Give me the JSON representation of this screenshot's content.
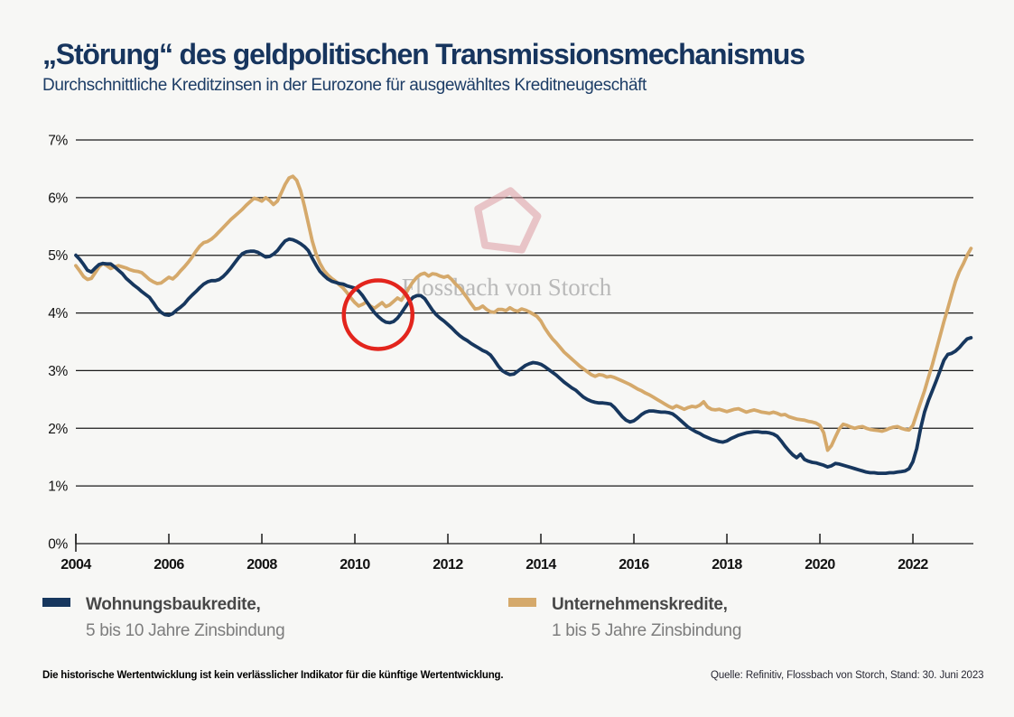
{
  "header": {
    "title": "„Störung“ des geldpolitischen Transmissionsmechanismus",
    "subtitle": "Durchschnittliche Kreditzinsen in der Eurozone für ausgewähltes Kreditneugeschäft"
  },
  "legend": {
    "entries": [
      {
        "line1": "Wohnungsbaukredite,",
        "line2": "5 bis 10 Jahre Zinsbindung",
        "color": "#17375e"
      },
      {
        "line1": "Unternehmenskredite,",
        "line2": "1 bis 5 Jahre Zinsbindung",
        "color": "#d5a96b"
      }
    ]
  },
  "footer": {
    "disclaimer": "Die historische Wertentwicklung ist kein verlässlicher Indikator für die künftige Wertentwicklung.",
    "source": "Quelle: Refinitiv, Flossbach von Storch, Stand: 30. Juni 2023"
  },
  "colors": {
    "background": "#f7f7f5",
    "title_navy": "#17355e",
    "grid": "#1a1a1a",
    "line_housing": "#17375e",
    "line_corporate": "#d5a96b",
    "annotation_red": "#e3251d",
    "watermark_pink": "#dc9aa0",
    "watermark_gray": "#b3b3b3"
  },
  "chart_data": {
    "type": "line",
    "title": "„Störung“ des geldpolitischen Transmissionsmechanismus",
    "subtitle": "Durchschnittliche Kreditzinsen in der Eurozone für ausgewähltes Kreditneugeschäft",
    "xlabel": "",
    "ylabel": "",
    "xlim": [
      2004,
      2023.3
    ],
    "ylim": [
      0,
      7
    ],
    "grid": "horizontal",
    "legend_position": "bottom",
    "y_ticks": [
      "0%",
      "1%",
      "2%",
      "3%",
      "4%",
      "5%",
      "6%",
      "7%"
    ],
    "x_ticks": [
      2004,
      2006,
      2008,
      2010,
      2012,
      2014,
      2016,
      2018,
      2020,
      2022
    ],
    "watermark": {
      "text": "Flossbach von Storch",
      "symbol": "pentagon-logo"
    },
    "annotations": [
      {
        "type": "circle",
        "x": 2010.5,
        "y": 3.97,
        "note": "highlight of rate crossover around 2010/2011"
      }
    ],
    "series": [
      {
        "name": "Wohnungsbaukredite, 5 bis 10 Jahre Zinsbindung",
        "color": "#17375e",
        "x_start": 2004.0,
        "x_step": 0.083333,
        "values": [
          5.0,
          4.93,
          4.84,
          4.74,
          4.71,
          4.78,
          4.84,
          4.86,
          4.85,
          4.85,
          4.8,
          4.74,
          4.68,
          4.6,
          4.54,
          4.48,
          4.43,
          4.37,
          4.32,
          4.27,
          4.18,
          4.08,
          4.01,
          3.97,
          3.96,
          3.99,
          4.05,
          4.1,
          4.16,
          4.24,
          4.31,
          4.37,
          4.44,
          4.5,
          4.54,
          4.56,
          4.56,
          4.58,
          4.63,
          4.7,
          4.78,
          4.87,
          4.96,
          5.03,
          5.06,
          5.07,
          5.07,
          5.05,
          5.01,
          4.97,
          4.98,
          5.02,
          5.08,
          5.17,
          5.25,
          5.28,
          5.27,
          5.24,
          5.2,
          5.15,
          5.08,
          4.95,
          4.83,
          4.72,
          4.65,
          4.59,
          4.55,
          4.53,
          4.51,
          4.5,
          4.47,
          4.45,
          4.43,
          4.38,
          4.3,
          4.2,
          4.1,
          4.01,
          3.94,
          3.88,
          3.84,
          3.83,
          3.85,
          3.91,
          4.0,
          4.1,
          4.2,
          4.27,
          4.3,
          4.3,
          4.25,
          4.15,
          4.05,
          3.97,
          3.91,
          3.86,
          3.8,
          3.74,
          3.67,
          3.61,
          3.56,
          3.52,
          3.47,
          3.43,
          3.39,
          3.35,
          3.32,
          3.27,
          3.18,
          3.08,
          3.0,
          2.96,
          2.93,
          2.94,
          2.99,
          3.04,
          3.09,
          3.12,
          3.14,
          3.13,
          3.11,
          3.07,
          3.02,
          2.97,
          2.92,
          2.86,
          2.8,
          2.75,
          2.7,
          2.66,
          2.6,
          2.54,
          2.5,
          2.47,
          2.45,
          2.44,
          2.44,
          2.43,
          2.42,
          2.36,
          2.28,
          2.2,
          2.14,
          2.11,
          2.13,
          2.18,
          2.24,
          2.28,
          2.3,
          2.3,
          2.29,
          2.28,
          2.28,
          2.27,
          2.25,
          2.2,
          2.14,
          2.08,
          2.02,
          1.98,
          1.94,
          1.91,
          1.87,
          1.84,
          1.81,
          1.79,
          1.77,
          1.76,
          1.78,
          1.82,
          1.85,
          1.88,
          1.9,
          1.92,
          1.93,
          1.94,
          1.94,
          1.93,
          1.93,
          1.92,
          1.9,
          1.86,
          1.78,
          1.69,
          1.61,
          1.54,
          1.49,
          1.55,
          1.46,
          1.43,
          1.41,
          1.4,
          1.38,
          1.36,
          1.33,
          1.35,
          1.39,
          1.38,
          1.36,
          1.34,
          1.32,
          1.3,
          1.28,
          1.26,
          1.24,
          1.23,
          1.23,
          1.22,
          1.22,
          1.22,
          1.23,
          1.23,
          1.24,
          1.25,
          1.26,
          1.3,
          1.42,
          1.65,
          2.0,
          2.28,
          2.48,
          2.65,
          2.82,
          3.0,
          3.18,
          3.28,
          3.3,
          3.34,
          3.4,
          3.48,
          3.55,
          3.57
        ]
      },
      {
        "name": "Unternehmenskredite, 1 bis 5 Jahre Zinsbindung",
        "color": "#d5a96b",
        "x_start": 2004.0,
        "x_step": 0.083333,
        "values": [
          4.82,
          4.73,
          4.63,
          4.58,
          4.6,
          4.7,
          4.8,
          4.86,
          4.82,
          4.77,
          4.8,
          4.82,
          4.8,
          4.78,
          4.75,
          4.73,
          4.72,
          4.7,
          4.64,
          4.58,
          4.54,
          4.51,
          4.52,
          4.57,
          4.62,
          4.59,
          4.65,
          4.73,
          4.8,
          4.88,
          4.97,
          5.07,
          5.16,
          5.22,
          5.24,
          5.28,
          5.34,
          5.41,
          5.48,
          5.55,
          5.62,
          5.68,
          5.74,
          5.8,
          5.87,
          5.93,
          5.99,
          5.97,
          5.94,
          6.0,
          5.95,
          5.88,
          5.94,
          6.08,
          6.23,
          6.34,
          6.37,
          6.3,
          6.12,
          5.85,
          5.55,
          5.25,
          5.02,
          4.86,
          4.74,
          4.66,
          4.6,
          4.55,
          4.49,
          4.43,
          4.35,
          4.26,
          4.18,
          4.12,
          4.15,
          4.19,
          4.12,
          4.08,
          4.13,
          4.18,
          4.11,
          4.14,
          4.2,
          4.26,
          4.22,
          4.32,
          4.44,
          4.54,
          4.62,
          4.67,
          4.69,
          4.64,
          4.68,
          4.67,
          4.64,
          4.62,
          4.64,
          4.58,
          4.5,
          4.44,
          4.35,
          4.26,
          4.16,
          4.07,
          4.08,
          4.12,
          4.06,
          4.02,
          4.01,
          4.06,
          4.06,
          4.04,
          4.09,
          4.05,
          4.03,
          4.07,
          4.05,
          4.02,
          3.98,
          3.94,
          3.86,
          3.74,
          3.64,
          3.55,
          3.48,
          3.4,
          3.32,
          3.26,
          3.2,
          3.14,
          3.08,
          3.03,
          2.98,
          2.93,
          2.9,
          2.93,
          2.92,
          2.89,
          2.9,
          2.88,
          2.85,
          2.82,
          2.79,
          2.76,
          2.72,
          2.68,
          2.65,
          2.61,
          2.58,
          2.54,
          2.5,
          2.46,
          2.42,
          2.38,
          2.35,
          2.39,
          2.36,
          2.33,
          2.36,
          2.38,
          2.37,
          2.4,
          2.46,
          2.37,
          2.33,
          2.32,
          2.33,
          2.31,
          2.29,
          2.31,
          2.33,
          2.34,
          2.31,
          2.28,
          2.3,
          2.32,
          2.3,
          2.28,
          2.27,
          2.26,
          2.28,
          2.26,
          2.23,
          2.24,
          2.2,
          2.18,
          2.16,
          2.15,
          2.14,
          2.12,
          2.11,
          2.09,
          2.05,
          1.92,
          1.62,
          1.7,
          1.85,
          1.99,
          2.07,
          2.05,
          2.02,
          2.0,
          2.02,
          2.03,
          2.0,
          1.98,
          1.97,
          1.96,
          1.95,
          1.97,
          2.0,
          2.02,
          2.03,
          2.0,
          1.98,
          1.97,
          2.05,
          2.25,
          2.45,
          2.65,
          2.88,
          3.1,
          3.35,
          3.6,
          3.85,
          4.08,
          4.32,
          4.55,
          4.72,
          4.85,
          5.0,
          5.12
        ]
      }
    ]
  }
}
